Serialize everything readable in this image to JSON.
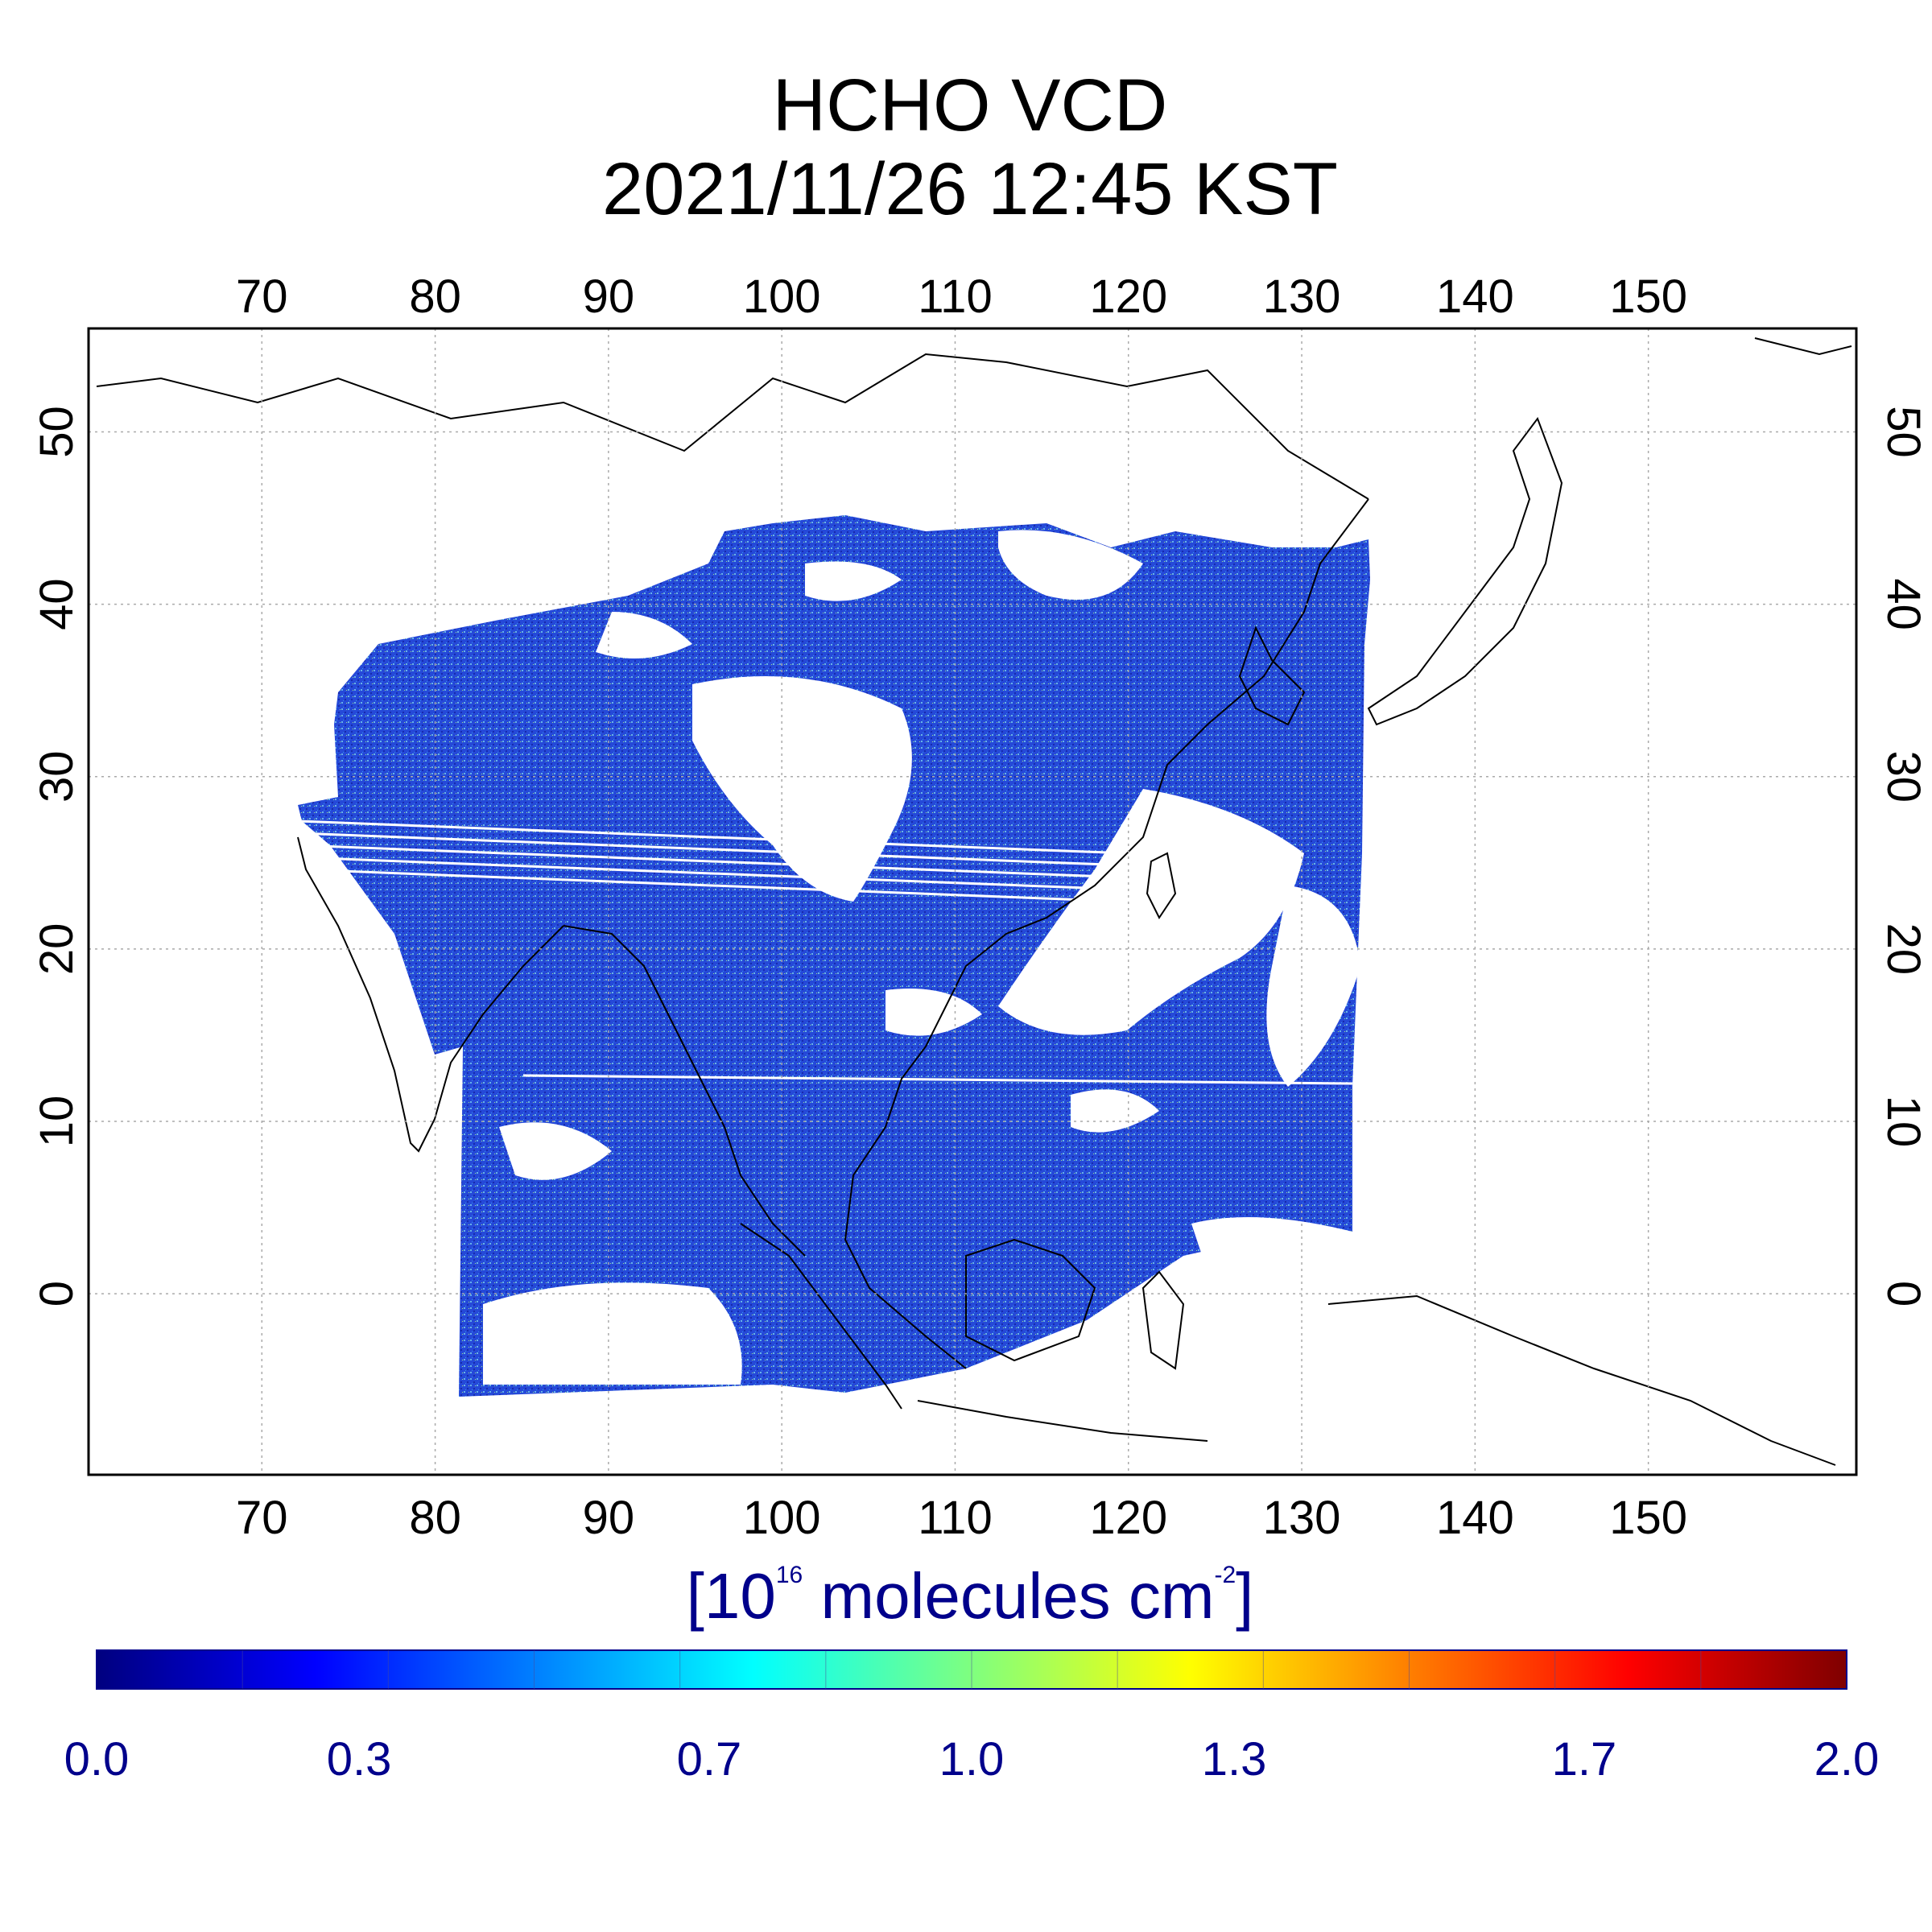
{
  "title": {
    "line1": "HCHO VCD",
    "line2": "2021/11/26 12:45 KST"
  },
  "map": {
    "lon_range": [
      60,
      162
    ],
    "lat_range": [
      -10.5,
      56
    ],
    "lon_ticks": [
      "70",
      "80",
      "90",
      "100",
      "110",
      "120",
      "130",
      "140",
      "150"
    ],
    "lat_ticks": [
      "50",
      "40",
      "30",
      "20",
      "10",
      "0"
    ],
    "grid": true,
    "grid_color": "#aaaaaa",
    "coastline_color": "#000000",
    "no_data_color": "#ffffff"
  },
  "colorbar": {
    "unit_open": "[10",
    "unit_exp": "16",
    "unit_mid": " molecules cm",
    "unit_exp2": "-2",
    "unit_close": "]",
    "range": [
      0.0,
      2.0
    ],
    "ticks": [
      "0.0",
      "0.3",
      "0.7",
      "1.0",
      "1.3",
      "1.7",
      "2.0"
    ],
    "stops": [
      "#00007f",
      "#0000ff",
      "#007fff",
      "#00ffff",
      "#7fff7f",
      "#ffff00",
      "#ff7f00",
      "#ff0000",
      "#7f0000"
    ],
    "label_color": "#00008b"
  }
}
